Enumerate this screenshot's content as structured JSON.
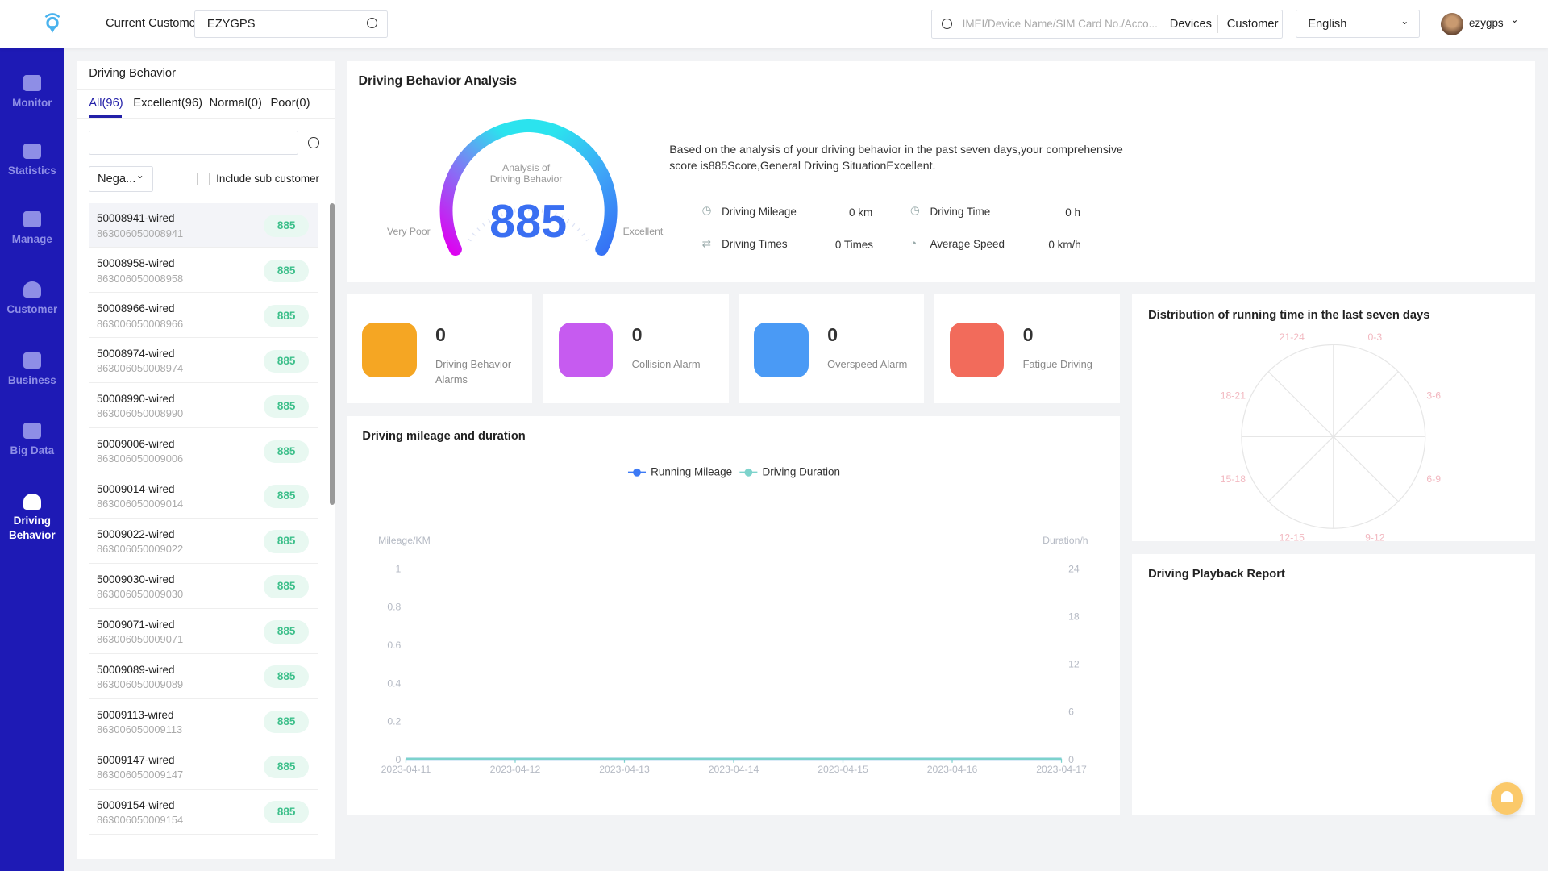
{
  "header": {
    "current_customer_label": "Current Customer",
    "current_customer_value": "EZYGPS",
    "search_placeholder": "IMEI/Device Name/SIM Card No./Acco...",
    "devices_label": "Devices",
    "customer_label": "Customer",
    "language": "English",
    "username": "ezygps"
  },
  "sidebar": {
    "items": [
      {
        "label": "Monitor"
      },
      {
        "label": "Statistics"
      },
      {
        "label": "Manage"
      },
      {
        "label": "Customer"
      },
      {
        "label": "Business"
      },
      {
        "label": "Big Data"
      },
      {
        "label": "Driving Behavior",
        "active": true
      }
    ]
  },
  "left_panel": {
    "title": "Driving Behavior",
    "tabs": [
      {
        "label": "All(96)",
        "active": true
      },
      {
        "label": "Excellent(96)"
      },
      {
        "label": "Normal(0)"
      },
      {
        "label": "Poor(0)"
      }
    ],
    "search_value": "",
    "filter_select": "Nega...",
    "include_sub_label": "Include sub customer",
    "include_sub_checked": false,
    "devices": [
      {
        "name": "50008941-wired",
        "imei": "863006050008941",
        "score": "885"
      },
      {
        "name": "50008958-wired",
        "imei": "863006050008958",
        "score": "885"
      },
      {
        "name": "50008966-wired",
        "imei": "863006050008966",
        "score": "885"
      },
      {
        "name": "50008974-wired",
        "imei": "863006050008974",
        "score": "885"
      },
      {
        "name": "50008990-wired",
        "imei": "863006050008990",
        "score": "885"
      },
      {
        "name": "50009006-wired",
        "imei": "863006050009006",
        "score": "885"
      },
      {
        "name": "50009014-wired",
        "imei": "863006050009014",
        "score": "885"
      },
      {
        "name": "50009022-wired",
        "imei": "863006050009022",
        "score": "885"
      },
      {
        "name": "50009030-wired",
        "imei": "863006050009030",
        "score": "885"
      },
      {
        "name": "50009071-wired",
        "imei": "863006050009071",
        "score": "885"
      },
      {
        "name": "50009089-wired",
        "imei": "863006050009089",
        "score": "885"
      },
      {
        "name": "50009113-wired",
        "imei": "863006050009113",
        "score": "885"
      },
      {
        "name": "50009147-wired",
        "imei": "863006050009147",
        "score": "885"
      },
      {
        "name": "50009154-wired",
        "imei": "863006050009154",
        "score": "885"
      }
    ]
  },
  "analysis": {
    "title": "Driving Behavior Analysis",
    "gauge_label_1": "Analysis of",
    "gauge_label_2": "Driving Behavior",
    "score": "885",
    "very_poor": "Very Poor",
    "excellent": "Excellent",
    "summary": "Based on the analysis of your driving behavior in the past seven days,your comprehensive score is885Score,General Driving SituationExcellent.",
    "stats": {
      "mileage_label": "Driving Mileage",
      "mileage_value": "0 km",
      "time_label": "Driving Time",
      "time_value": "0 h",
      "times_label": "Driving Times",
      "times_value": "0 Times",
      "speed_label": "Average Speed",
      "speed_value": "0 km/h"
    }
  },
  "cards": [
    {
      "value": "0",
      "label": "Driving Behavior Alarms",
      "color": "#f5a623"
    },
    {
      "value": "0",
      "label": "Collision Alarm",
      "color": "#c65bf0"
    },
    {
      "value": "0",
      "label": "Overspeed Alarm",
      "color": "#4a9af5"
    },
    {
      "value": "0",
      "label": "Fatigue Driving",
      "color": "#f26b5b"
    }
  ],
  "distribution": {
    "title": "Distribution of running time in the last seven days",
    "labels": [
      "0-3",
      "3-6",
      "6-9",
      "9-12",
      "12-15",
      "15-18",
      "18-21",
      "21-24"
    ]
  },
  "playback": {
    "title": "Driving Playback Report"
  },
  "chart_data": {
    "type": "line",
    "title": "Driving mileage and duration",
    "categories": [
      "2023-04-11",
      "2023-04-12",
      "2023-04-13",
      "2023-04-14",
      "2023-04-15",
      "2023-04-16",
      "2023-04-17"
    ],
    "ylabel_left": "Mileage/KM",
    "ylabel_right": "Duration/h",
    "yticks_left": [
      "0",
      "0.2",
      "0.4",
      "0.6",
      "0.8",
      "1"
    ],
    "yticks_right": [
      "0",
      "6",
      "12",
      "18",
      "24"
    ],
    "ylim_left": [
      0,
      1
    ],
    "ylim_right": [
      0,
      24
    ],
    "legend": "top-center",
    "grid": false,
    "series": [
      {
        "name": "Running Mileage",
        "values": [
          0,
          0,
          0,
          0,
          0,
          0,
          0
        ],
        "color": "#3d7af5"
      },
      {
        "name": "Driving Duration",
        "values": [
          0,
          0,
          0,
          0,
          0,
          0,
          0
        ],
        "color": "#7dd3cc"
      }
    ]
  }
}
